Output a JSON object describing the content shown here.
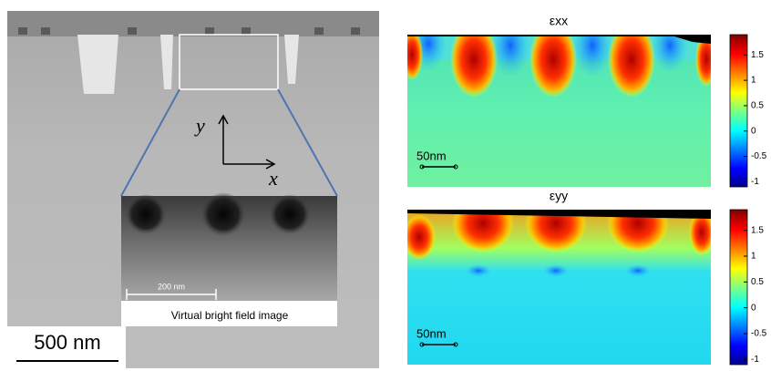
{
  "left_panel": {
    "scale_bar": "500 nm",
    "axes": {
      "y": "y",
      "x": "x"
    },
    "inset": {
      "scale_bar": "200 nm",
      "caption": "Virtual bright field image"
    }
  },
  "maps": [
    {
      "title": "εxx",
      "scale_bar": "50nm",
      "colorbar": {
        "clim": [
          -1.1,
          1.9
        ],
        "ticks": [
          1.5,
          1,
          0.5,
          0,
          -0.5,
          -1
        ]
      }
    },
    {
      "title": "εyy",
      "scale_bar": "50nm",
      "colorbar": {
        "clim": [
          -1.1,
          1.9
        ],
        "ticks": [
          1.5,
          1,
          0.5,
          0,
          -0.5,
          -1
        ]
      }
    }
  ]
}
